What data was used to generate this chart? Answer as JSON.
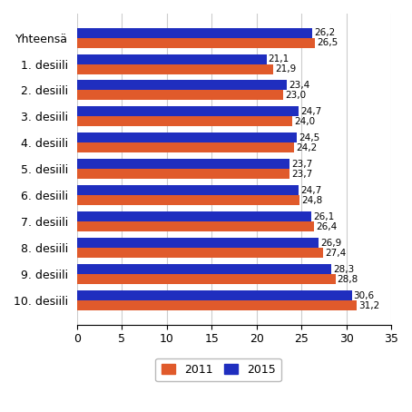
{
  "categories": [
    "Yhteensä",
    "1. desiili",
    "2. desiili",
    "3. desiili",
    "4. desiili",
    "5. desiili",
    "6. desiili",
    "7. desiili",
    "8. desiili",
    "9. desiili",
    "10. desiili"
  ],
  "values_2011": [
    26.5,
    21.9,
    23.0,
    24.0,
    24.2,
    23.7,
    24.8,
    26.4,
    27.4,
    28.8,
    31.2
  ],
  "values_2015": [
    26.2,
    21.1,
    23.4,
    24.7,
    24.5,
    23.7,
    24.7,
    26.1,
    26.9,
    28.3,
    30.6
  ],
  "color_2011": "#E05A2B",
  "color_2015": "#1F2EBF",
  "xlim": [
    0,
    35
  ],
  "xticks": [
    0,
    5,
    10,
    15,
    20,
    25,
    30,
    35
  ],
  "bar_height": 0.38,
  "legend_2011": "2011",
  "legend_2015": "2015",
  "background_color": "#ffffff",
  "grid_color": "#cccccc"
}
